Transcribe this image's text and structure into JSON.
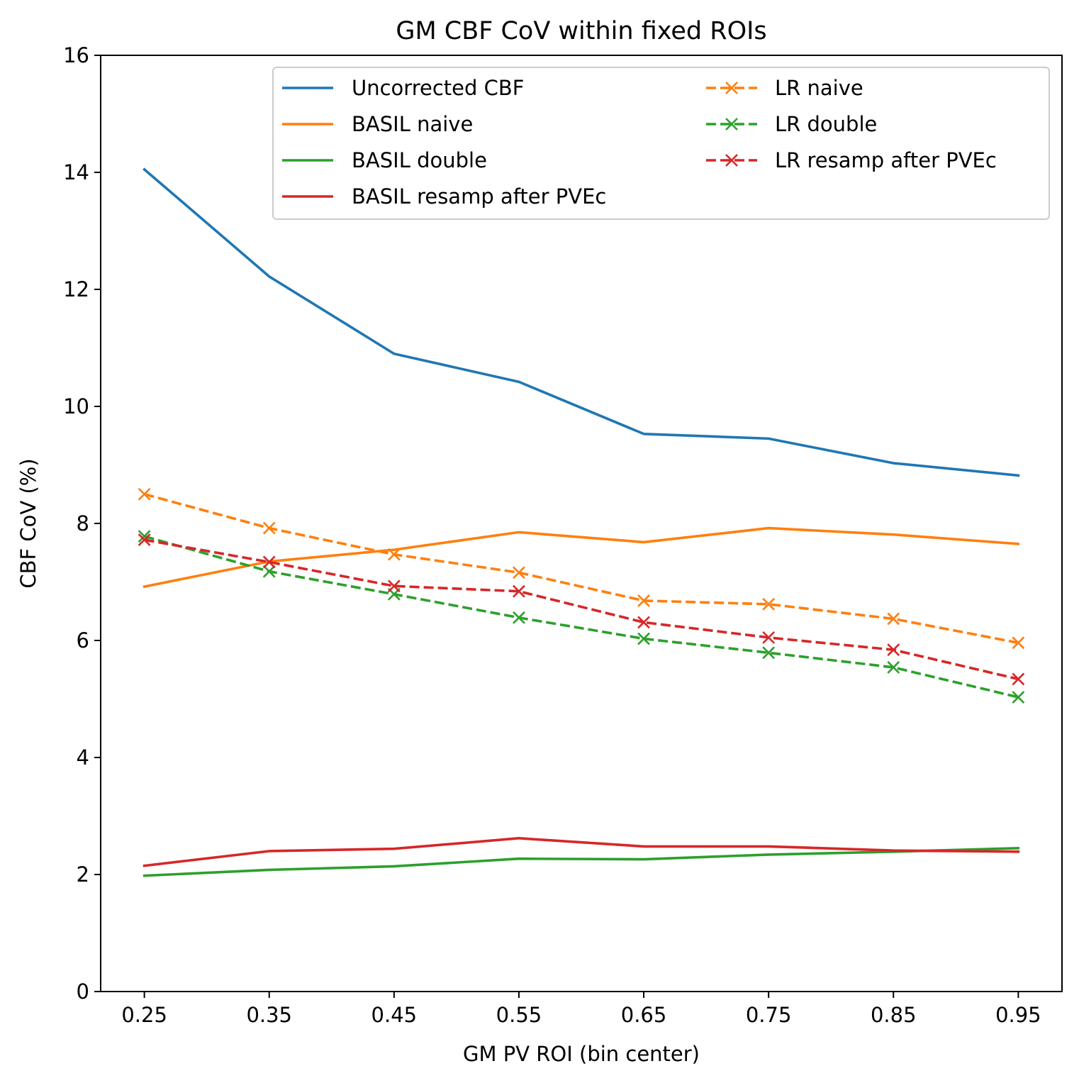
{
  "chart_data": {
    "type": "line",
    "title": "GM CBF CoV within fixed ROIs",
    "xlabel": "GM PV ROI (bin center)",
    "ylabel": "CBF CoV (%)",
    "x": [
      0.25,
      0.35,
      0.45,
      0.55,
      0.65,
      0.75,
      0.85,
      0.95
    ],
    "x_tick_labels": [
      "0.25",
      "0.35",
      "0.45",
      "0.55",
      "0.65",
      "0.75",
      "0.85",
      "0.95"
    ],
    "y_ticks": [
      0,
      2,
      4,
      6,
      8,
      10,
      12,
      14,
      16
    ],
    "y_tick_labels": [
      "0",
      "2",
      "4",
      "6",
      "8",
      "10",
      "12",
      "14",
      "16"
    ],
    "ylim": [
      0,
      16
    ],
    "xlim": [
      0.215,
      0.985
    ],
    "grid": false,
    "legend_position": "top-right",
    "legend_columns": 2,
    "series": [
      {
        "name": "Uncorrected CBF",
        "color": "#1f77b4",
        "style": "solid",
        "marker": "none",
        "values": [
          14.05,
          12.22,
          10.9,
          10.42,
          9.53,
          9.45,
          9.03,
          8.82
        ]
      },
      {
        "name": "BASIL naive",
        "color": "#ff7f0e",
        "style": "solid",
        "marker": "none",
        "values": [
          6.92,
          7.35,
          7.55,
          7.85,
          7.68,
          7.92,
          7.81,
          7.65
        ]
      },
      {
        "name": "BASIL double",
        "color": "#2ca02c",
        "style": "solid",
        "marker": "none",
        "values": [
          1.98,
          2.08,
          2.14,
          2.27,
          2.26,
          2.34,
          2.39,
          2.45
        ]
      },
      {
        "name": "BASIL resamp after PVEc",
        "color": "#d62728",
        "style": "solid",
        "marker": "none",
        "values": [
          2.15,
          2.4,
          2.44,
          2.62,
          2.48,
          2.48,
          2.41,
          2.39
        ]
      },
      {
        "name": "LR naive",
        "color": "#ff7f0e",
        "style": "dashed",
        "marker": "x",
        "values": [
          8.5,
          7.92,
          7.47,
          7.16,
          6.68,
          6.62,
          6.37,
          5.96
        ]
      },
      {
        "name": "LR double",
        "color": "#2ca02c",
        "style": "dashed",
        "marker": "x",
        "values": [
          7.78,
          7.18,
          6.79,
          6.39,
          6.03,
          5.79,
          5.54,
          5.03
        ]
      },
      {
        "name": "LR resamp after PVEc",
        "color": "#d62728",
        "style": "dashed",
        "marker": "x",
        "values": [
          7.72,
          7.34,
          6.93,
          6.84,
          6.31,
          6.05,
          5.84,
          5.34
        ]
      }
    ]
  }
}
